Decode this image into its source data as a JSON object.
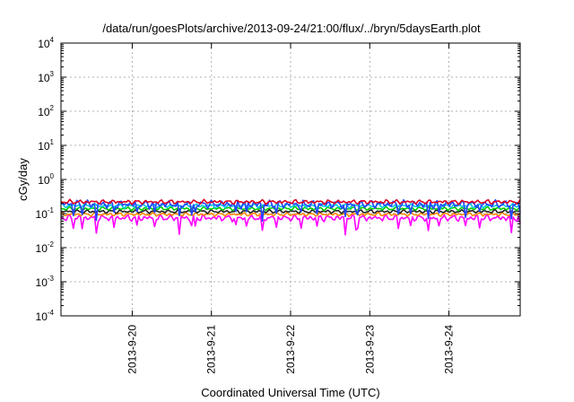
{
  "chart_data": {
    "type": "line",
    "title": "/data/run/goesPlots/archive/2013-09-24/21:00/flux/../bryn/5daysEarth.plot",
    "xlabel": "Coordinated Universal Time (UTC)",
    "ylabel": "cGy/day",
    "yscale": "log",
    "ylim_exponents": [
      -4,
      4
    ],
    "y_ticks": [
      {
        "base": "10",
        "exp": "-4"
      },
      {
        "base": "10",
        "exp": "-3"
      },
      {
        "base": "10",
        "exp": "-2"
      },
      {
        "base": "10",
        "exp": "-1"
      },
      {
        "base": "10",
        "exp": "0"
      },
      {
        "base": "10",
        "exp": "1"
      },
      {
        "base": "10",
        "exp": "2"
      },
      {
        "base": "10",
        "exp": "3"
      },
      {
        "base": "10",
        "exp": "4"
      }
    ],
    "x_range_days": [
      19.1,
      24.9
    ],
    "x_ticks": [
      {
        "day": 20,
        "label": "2013-9-20"
      },
      {
        "day": 21,
        "label": "2013-9-21"
      },
      {
        "day": 22,
        "label": "2013-9-22"
      },
      {
        "day": 23,
        "label": "2013-9-23"
      },
      {
        "day": 24,
        "label": "2013-9-24"
      }
    ],
    "grid": true,
    "series": [
      {
        "color": "#ff00ff",
        "base": 0.075,
        "amp": 0.18,
        "dips": true
      },
      {
        "color": "#ff8800",
        "base": 0.095,
        "amp": 0.1,
        "dips": false
      },
      {
        "color": "#222222",
        "base": 0.115,
        "amp": 0.1,
        "dips": false
      },
      {
        "color": "#00cc00",
        "base": 0.14,
        "amp": 0.1,
        "dips": false
      },
      {
        "color": "#00c8e0",
        "base": 0.17,
        "amp": 0.12,
        "dips": false
      },
      {
        "color": "#2244ff",
        "base": 0.19,
        "amp": 0.22,
        "dips": true
      },
      {
        "color": "#dd0022",
        "base": 0.22,
        "amp": 0.12,
        "dips": false
      }
    ]
  }
}
